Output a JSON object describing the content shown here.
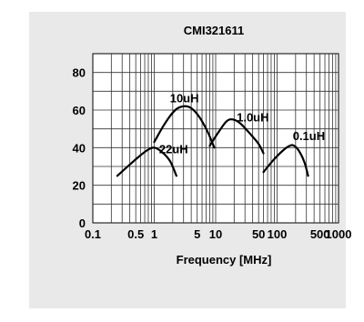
{
  "chart_data": {
    "type": "line",
    "title": "CMI321611",
    "xlabel": "Frequency [MHz]",
    "ylabel": "",
    "x_scale": "log",
    "xlim": [
      0.1,
      1000
    ],
    "ylim": [
      0,
      90
    ],
    "x_tick_labels": [
      "0.1",
      "0.5",
      "1",
      "5",
      "10",
      "50",
      "100",
      "500",
      "1000"
    ],
    "y_tick_labels": [
      "0",
      "20",
      "40",
      "60",
      "80"
    ],
    "grid": true,
    "series": [
      {
        "name": "22uH",
        "label_at": [
          1.2,
          37
        ],
        "points": [
          [
            0.25,
            25
          ],
          [
            0.4,
            31
          ],
          [
            0.6,
            36
          ],
          [
            0.8,
            39
          ],
          [
            1.0,
            40
          ],
          [
            1.3,
            38
          ],
          [
            1.8,
            33
          ],
          [
            2.3,
            25
          ]
        ]
      },
      {
        "name": "10uH",
        "label_at": [
          1.8,
          64
        ],
        "points": [
          [
            1.0,
            43
          ],
          [
            1.5,
            53
          ],
          [
            2.2,
            60
          ],
          [
            3.0,
            62
          ],
          [
            4.0,
            61
          ],
          [
            5.5,
            56
          ],
          [
            7.5,
            48
          ],
          [
            9.5,
            40
          ]
        ]
      },
      {
        "name": "1.0uH",
        "label_at": [
          22,
          54
        ],
        "points": [
          [
            8.0,
            41
          ],
          [
            11,
            48
          ],
          [
            15,
            54
          ],
          [
            19,
            55
          ],
          [
            25,
            53
          ],
          [
            35,
            48
          ],
          [
            50,
            42
          ],
          [
            60,
            37
          ]
        ]
      },
      {
        "name": "0.1uH",
        "label_at": [
          180,
          44
        ],
        "points": [
          [
            60,
            27
          ],
          [
            85,
            33
          ],
          [
            120,
            38
          ],
          [
            160,
            41
          ],
          [
            190,
            41
          ],
          [
            230,
            38
          ],
          [
            280,
            32
          ],
          [
            320,
            25
          ]
        ]
      }
    ]
  }
}
